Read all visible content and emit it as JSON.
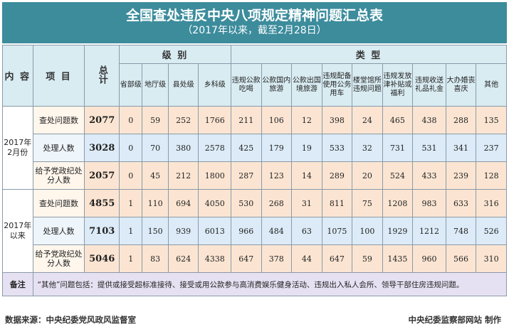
{
  "title": "全国查处违反中央八项规定精神问题汇总表",
  "subtitle": "（2017年以来，截至2月28日）",
  "headers": {
    "content": "内 容",
    "item": "项 目",
    "total": "总计",
    "level_group": "级 别",
    "type_group": "类 型",
    "levels": [
      "省部级",
      "地厅级",
      "县处级",
      "乡科级"
    ],
    "types": [
      "违规公款吃喝",
      "公款国内旅游",
      "公款出国境旅游",
      "违规配备使用公务用车",
      "楼堂馆所违规问题",
      "违规发放津补贴或福利",
      "违规收送礼品礼金",
      "大办婚丧喜庆",
      "其他"
    ]
  },
  "groups": [
    {
      "period": "2017年2月份",
      "rows": [
        {
          "item": "查处问题数",
          "total": "2077",
          "levels": [
            "0",
            "59",
            "252",
            "1766"
          ],
          "types": [
            "211",
            "106",
            "12",
            "398",
            "24",
            "465",
            "438",
            "288",
            "135"
          ]
        },
        {
          "item": "处理人数",
          "total": "3028",
          "levels": [
            "0",
            "70",
            "380",
            "2578"
          ],
          "types": [
            "425",
            "179",
            "19",
            "533",
            "32",
            "731",
            "531",
            "341",
            "237"
          ]
        },
        {
          "item": "给予党政纪处分人数",
          "total": "2057",
          "levels": [
            "0",
            "45",
            "212",
            "1800"
          ],
          "types": [
            "287",
            "123",
            "14",
            "289",
            "20",
            "524",
            "433",
            "239",
            "128"
          ]
        }
      ]
    },
    {
      "period": "2017年以来",
      "rows": [
        {
          "item": "查处问题数",
          "total": "4855",
          "levels": [
            "1",
            "110",
            "694",
            "4050"
          ],
          "types": [
            "530",
            "268",
            "31",
            "811",
            "75",
            "1208",
            "983",
            "633",
            "316"
          ]
        },
        {
          "item": "处理人数",
          "total": "7103",
          "levels": [
            "1",
            "150",
            "939",
            "6013"
          ],
          "types": [
            "966",
            "484",
            "63",
            "1075",
            "100",
            "1929",
            "1212",
            "748",
            "526"
          ]
        },
        {
          "item": "给予党政纪处分人数",
          "total": "5046",
          "levels": [
            "1",
            "83",
            "624",
            "4338"
          ],
          "types": [
            "647",
            "378",
            "44",
            "647",
            "59",
            "1435",
            "960",
            "566",
            "310"
          ]
        }
      ]
    }
  ],
  "note": {
    "label": "备注",
    "text": "“其他”问题包括：提供或接受超标准接待、接受或用公款参与高消费娱乐健身活动、违规出入私人会所、领导干部住房违规问题。"
  },
  "footer": {
    "source": "数据来源：中央纪委党风政风监督室",
    "credit": "中央纪委监察部网站 制作"
  },
  "colors": {
    "title_bg": "#3c8c9c",
    "header_bg": "#d9ecf2",
    "level_cells": "#fbe5d2",
    "type_cells": "#dcebf7",
    "note_bg": "#e6e1f2"
  }
}
